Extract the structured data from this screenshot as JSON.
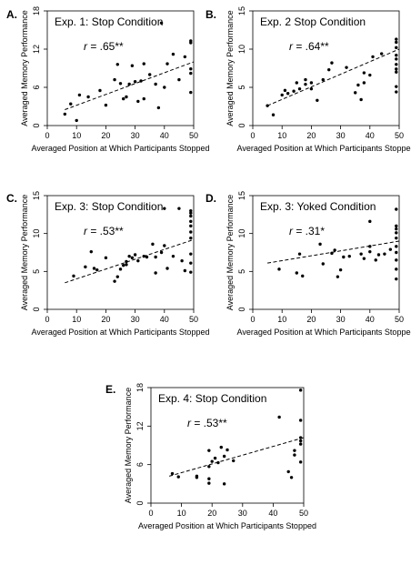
{
  "chart_data": [
    {
      "type": "scatter",
      "panel_label": "A.",
      "title": "Exp. 1: Stop Condition",
      "r_prefix": "r",
      "r_value": " = .65**",
      "xlabel": "Averaged Position at Which Participants Stopped",
      "ylabel": "Averaged Memory Performance",
      "xlim": [
        0,
        50
      ],
      "ylim": [
        0,
        18
      ],
      "xticks": [
        0,
        10,
        20,
        30,
        40,
        50
      ],
      "yticks": [
        0,
        6,
        12,
        18
      ],
      "trend": {
        "style": "dashed",
        "x": [
          6,
          50
        ],
        "y": [
          2.5,
          10.0
        ]
      },
      "points": [
        [
          6,
          1.8
        ],
        [
          8,
          3.4
        ],
        [
          10,
          0.8
        ],
        [
          11,
          4.8
        ],
        [
          14,
          4.5
        ],
        [
          18,
          5.5
        ],
        [
          20,
          3.2
        ],
        [
          23,
          7.2
        ],
        [
          24,
          9.6
        ],
        [
          25,
          6.6
        ],
        [
          26,
          4.2
        ],
        [
          27,
          4.5
        ],
        [
          28,
          6.5
        ],
        [
          29,
          9.4
        ],
        [
          30,
          6.9
        ],
        [
          31,
          3.8
        ],
        [
          32,
          7.0
        ],
        [
          33,
          4.2
        ],
        [
          33,
          9.7
        ],
        [
          35,
          8.0
        ],
        [
          37,
          6.5
        ],
        [
          38,
          2.8
        ],
        [
          39,
          16.1
        ],
        [
          40,
          6.0
        ],
        [
          41,
          9.7
        ],
        [
          43,
          11.2
        ],
        [
          45,
          7.2
        ],
        [
          47,
          10.8
        ],
        [
          49,
          5.2
        ],
        [
          49,
          8.2
        ],
        [
          49,
          8.9
        ],
        [
          49,
          13.0
        ],
        [
          49,
          13.3
        ]
      ]
    },
    {
      "type": "scatter",
      "panel_label": "B.",
      "title": "Exp. 2 Stop Condition",
      "r_prefix": "r",
      "r_value": " = .64**",
      "xlabel": "Averaged Position at Which Participants Stopped",
      "ylabel": "Averaged Memory Performance",
      "xlim": [
        0,
        50
      ],
      "ylim": [
        0,
        15
      ],
      "xticks": [
        0,
        10,
        20,
        30,
        40,
        50
      ],
      "yticks": [
        0,
        5,
        10,
        15
      ],
      "trend": {
        "style": "dashed",
        "x": [
          5,
          50
        ],
        "y": [
          2.6,
          10.0
        ]
      },
      "points": [
        [
          5,
          2.6
        ],
        [
          7,
          1.4
        ],
        [
          10,
          4.0
        ],
        [
          11,
          4.6
        ],
        [
          12,
          4.2
        ],
        [
          14,
          4.5
        ],
        [
          15,
          5.6
        ],
        [
          16,
          4.8
        ],
        [
          18,
          6.0
        ],
        [
          18,
          5.4
        ],
        [
          20,
          5.6
        ],
        [
          20,
          4.8
        ],
        [
          22,
          3.3
        ],
        [
          24,
          6.0
        ],
        [
          26,
          7.3
        ],
        [
          27,
          8.2
        ],
        [
          32,
          7.6
        ],
        [
          35,
          4.3
        ],
        [
          36,
          5.3
        ],
        [
          37,
          3.4
        ],
        [
          38,
          5.6
        ],
        [
          38,
          6.9
        ],
        [
          40,
          6.6
        ],
        [
          41,
          9.0
        ],
        [
          44,
          9.4
        ],
        [
          49,
          4.4
        ],
        [
          49,
          5.1
        ],
        [
          49,
          7.0
        ],
        [
          49,
          7.4
        ],
        [
          49,
          8.0
        ],
        [
          49,
          8.7
        ],
        [
          49,
          9.2
        ],
        [
          49,
          10.2
        ],
        [
          49,
          10.9
        ],
        [
          49,
          11.3
        ]
      ]
    },
    {
      "type": "scatter",
      "panel_label": "C.",
      "title": "Exp. 3: Stop Condition",
      "r_prefix": "r",
      "r_value": " = .53**",
      "xlabel": "Averaged Position at Which Participants Stopped",
      "ylabel": "Averaged Memory Performance",
      "xlim": [
        0,
        50
      ],
      "ylim": [
        0,
        15
      ],
      "xticks": [
        0,
        10,
        20,
        30,
        40,
        50
      ],
      "yticks": [
        0,
        5,
        10,
        15
      ],
      "trend": {
        "style": "dashed",
        "x": [
          6,
          50
        ],
        "y": [
          3.5,
          9.2
        ]
      },
      "points": [
        [
          9,
          4.4
        ],
        [
          13,
          5.6
        ],
        [
          15,
          7.6
        ],
        [
          16,
          5.4
        ],
        [
          17,
          5.2
        ],
        [
          20,
          6.8
        ],
        [
          23,
          3.7
        ],
        [
          24,
          4.3
        ],
        [
          25,
          5.3
        ],
        [
          26,
          5.8
        ],
        [
          27,
          6.3
        ],
        [
          27,
          5.9
        ],
        [
          28,
          7.0
        ],
        [
          29,
          6.8
        ],
        [
          30,
          7.2
        ],
        [
          31,
          6.4
        ],
        [
          33,
          7.0
        ],
        [
          34,
          6.9
        ],
        [
          36,
          8.6
        ],
        [
          37,
          4.8
        ],
        [
          37,
          6.9
        ],
        [
          39,
          7.5
        ],
        [
          40,
          8.4
        ],
        [
          40,
          13.3
        ],
        [
          41,
          5.4
        ],
        [
          43,
          7.0
        ],
        [
          45,
          13.3
        ],
        [
          46,
          6.4
        ],
        [
          47,
          5.1
        ],
        [
          49,
          4.9
        ],
        [
          49,
          6.1
        ],
        [
          49,
          7.3
        ],
        [
          49,
          9.4
        ],
        [
          49,
          10.2
        ],
        [
          49,
          11.0
        ],
        [
          49,
          11.6
        ],
        [
          49,
          12.3
        ],
        [
          49,
          12.7
        ],
        [
          49,
          13.0
        ]
      ]
    },
    {
      "type": "scatter",
      "panel_label": "D.",
      "title": "Exp. 3: Yoked Condition",
      "r_prefix": "r",
      "r_value": " = .31*",
      "xlabel": "Averaged Position at Which Participants Stopped",
      "ylabel": "Averaged Memory Performance",
      "xlim": [
        0,
        50
      ],
      "ylim": [
        0,
        15
      ],
      "xticks": [
        0,
        10,
        20,
        30,
        40,
        50
      ],
      "yticks": [
        0,
        5,
        10,
        15
      ],
      "trend": {
        "style": "dashed",
        "x": [
          5,
          50
        ],
        "y": [
          6.1,
          9.0
        ]
      },
      "points": [
        [
          9,
          5.3
        ],
        [
          15,
          4.8
        ],
        [
          16,
          7.3
        ],
        [
          17,
          4.4
        ],
        [
          23,
          8.6
        ],
        [
          24,
          6.0
        ],
        [
          27,
          7.4
        ],
        [
          28,
          7.8
        ],
        [
          29,
          4.3
        ],
        [
          30,
          5.2
        ],
        [
          31,
          6.9
        ],
        [
          33,
          7.0
        ],
        [
          37,
          7.3
        ],
        [
          38,
          6.7
        ],
        [
          40,
          7.6
        ],
        [
          40,
          8.3
        ],
        [
          40,
          11.6
        ],
        [
          42,
          6.5
        ],
        [
          43,
          7.2
        ],
        [
          45,
          7.3
        ],
        [
          47,
          7.9
        ],
        [
          49,
          4.0
        ],
        [
          49,
          5.3
        ],
        [
          49,
          6.5
        ],
        [
          49,
          7.5
        ],
        [
          49,
          8.3
        ],
        [
          49,
          9.4
        ],
        [
          49,
          10.1
        ],
        [
          49,
          10.6
        ],
        [
          49,
          11.0
        ],
        [
          49,
          13.2
        ]
      ]
    },
    {
      "type": "scatter",
      "panel_label": "E.",
      "title": "Exp. 4: Stop Condition",
      "r_prefix": "r",
      "r_value": " = .53**",
      "xlabel": "Averaged Position at Which Participants Stopped",
      "ylabel": "Averaged Memory Performance",
      "xlim": [
        0,
        50
      ],
      "ylim": [
        0,
        18
      ],
      "xticks": [
        0,
        10,
        20,
        30,
        40,
        50
      ],
      "yticks": [
        0,
        6,
        12,
        18
      ],
      "trend": {
        "style": "dashed",
        "x": [
          6,
          50
        ],
        "y": [
          4.2,
          10.2
        ]
      },
      "points": [
        [
          7,
          4.6
        ],
        [
          9,
          4.1
        ],
        [
          15,
          4.0
        ],
        [
          15,
          4.2
        ],
        [
          19,
          3.1
        ],
        [
          19,
          3.8
        ],
        [
          19,
          8.2
        ],
        [
          19,
          5.7
        ],
        [
          20,
          6.5
        ],
        [
          21,
          7.0
        ],
        [
          22,
          6.3
        ],
        [
          23,
          8.7
        ],
        [
          24,
          7.3
        ],
        [
          24,
          3.0
        ],
        [
          25,
          8.3
        ],
        [
          27,
          6.6
        ],
        [
          42,
          13.4
        ],
        [
          45,
          4.9
        ],
        [
          46,
          4.0
        ],
        [
          47,
          7.5
        ],
        [
          47,
          8.2
        ],
        [
          49,
          6.4
        ],
        [
          49,
          9.2
        ],
        [
          49,
          9.7
        ],
        [
          49,
          10.2
        ],
        [
          49,
          12.9
        ],
        [
          49,
          17.6
        ]
      ]
    }
  ]
}
